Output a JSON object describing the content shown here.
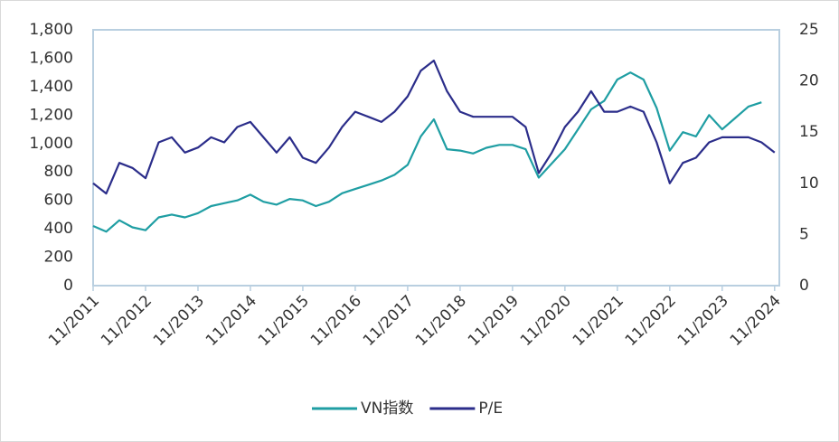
{
  "chart_data": {
    "type": "line",
    "x": [
      2011.83,
      2012.08,
      2012.33,
      2012.58,
      2012.83,
      2013.08,
      2013.33,
      2013.58,
      2013.83,
      2014.08,
      2014.33,
      2014.58,
      2014.83,
      2015.08,
      2015.33,
      2015.58,
      2015.83,
      2016.08,
      2016.33,
      2016.58,
      2016.83,
      2017.08,
      2017.33,
      2017.58,
      2017.83,
      2018.08,
      2018.33,
      2018.58,
      2018.83,
      2019.08,
      2019.33,
      2019.58,
      2019.83,
      2020.08,
      2020.33,
      2020.58,
      2020.83,
      2021.08,
      2021.33,
      2021.58,
      2021.83,
      2022.08,
      2022.33,
      2022.58,
      2022.83,
      2023.08,
      2023.33,
      2023.58,
      2023.83,
      2024.08,
      2024.33,
      2024.58,
      2024.83
    ],
    "series": [
      {
        "name": "VN指数",
        "color": "#1f9ea3",
        "values": [
          420,
          380,
          460,
          410,
          390,
          480,
          500,
          480,
          510,
          560,
          580,
          600,
          640,
          590,
          570,
          610,
          600,
          560,
          590,
          650,
          680,
          710,
          740,
          780,
          850,
          1050,
          1170,
          960,
          950,
          930,
          970,
          990,
          990,
          960,
          760,
          860,
          960,
          1100,
          1240,
          1300,
          1450,
          1500,
          1450,
          1250,
          950,
          1080,
          1050,
          1200,
          1100,
          1180,
          1260,
          1290,
          null
        ]
      },
      {
        "name": "P/E",
        "color": "#2b2d8a",
        "axis": "y2",
        "values": [
          10,
          9,
          12,
          11.5,
          10.5,
          14,
          14.5,
          13,
          13.5,
          14.5,
          14,
          15.5,
          16,
          14.5,
          13,
          14.5,
          12.5,
          12,
          13.5,
          15.5,
          17,
          16.5,
          16,
          17,
          18.5,
          21,
          22,
          19,
          17,
          16.5,
          16.5,
          16.5,
          16.5,
          15.5,
          11,
          13,
          15.5,
          17,
          19,
          17,
          17,
          17.5,
          17,
          14,
          10,
          12,
          12.5,
          14,
          14.5,
          14.5,
          14.5,
          14,
          13
        ]
      }
    ],
    "xlim": [
      2011.83,
      2024.92
    ],
    "xticks": [
      {
        "value": 2011.83,
        "label": "11/2011"
      },
      {
        "value": 2012.83,
        "label": "11/2012"
      },
      {
        "value": 2013.83,
        "label": "11/2013"
      },
      {
        "value": 2014.83,
        "label": "11/2014"
      },
      {
        "value": 2015.83,
        "label": "11/2015"
      },
      {
        "value": 2016.83,
        "label": "11/2016"
      },
      {
        "value": 2017.83,
        "label": "11/2017"
      },
      {
        "value": 2018.83,
        "label": "11/2018"
      },
      {
        "value": 2019.83,
        "label": "11/2019"
      },
      {
        "value": 2020.83,
        "label": "11/2020"
      },
      {
        "value": 2021.83,
        "label": "11/2021"
      },
      {
        "value": 2022.83,
        "label": "11/2022"
      },
      {
        "value": 2023.83,
        "label": "11/2023"
      },
      {
        "value": 2024.83,
        "label": "11/2024"
      }
    ],
    "ylim": [
      0,
      1800
    ],
    "yticks": [
      0,
      200,
      400,
      600,
      800,
      {
        "value": 1000,
        "label": "1,000"
      },
      {
        "value": 1200,
        "label": "1,200"
      },
      {
        "value": 1400,
        "label": "1,400"
      },
      {
        "value": 1600,
        "label": "1,600"
      },
      {
        "value": 1800,
        "label": "1,800"
      }
    ],
    "y2lim": [
      0,
      25
    ],
    "y2ticks": [
      0,
      5,
      10,
      15,
      20,
      25
    ],
    "legend": "bottom"
  }
}
